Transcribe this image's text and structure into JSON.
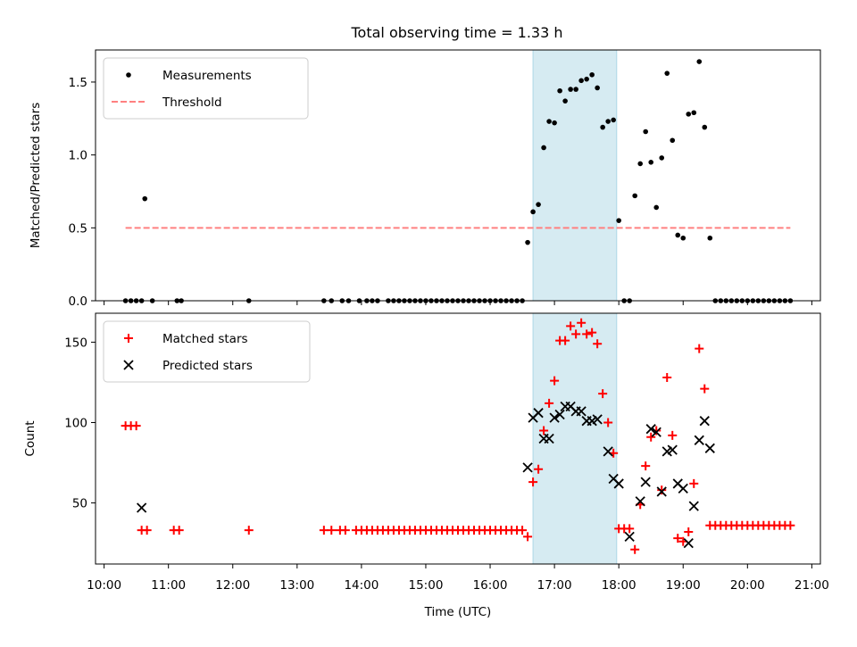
{
  "figure": {
    "title": "Total observing time = 1.33 h",
    "shaded_interval": {
      "start": "16:40",
      "end": "17:58"
    }
  },
  "chart_data": [
    {
      "type": "scatter",
      "ylabel": "Matched/Predicted stars",
      "xlim": [
        "09:52",
        "21:08"
      ],
      "ylim": [
        0,
        1.72
      ],
      "yticks": [
        0.0,
        0.5,
        1.0,
        1.5
      ],
      "ytick_labels": [
        "0.0",
        "0.5",
        "1.0",
        "1.5"
      ],
      "legend": {
        "placement": "upper left",
        "entries": [
          "Measurements",
          "Threshold"
        ]
      },
      "series": [
        {
          "name": "Measurements",
          "color": "#000000",
          "points": [
            [
              "10:20",
              0
            ],
            [
              "10:25",
              0
            ],
            [
              "10:30",
              0
            ],
            [
              "10:35",
              0
            ],
            [
              "10:38",
              0.7
            ],
            [
              "10:45",
              0
            ],
            [
              "11:08",
              0
            ],
            [
              "11:12",
              0
            ],
            [
              "12:15",
              0
            ],
            [
              "13:25",
              0
            ],
            [
              "13:32",
              0
            ],
            [
              "13:42",
              0
            ],
            [
              "13:48",
              0
            ],
            [
              "13:58",
              0
            ],
            [
              "14:05",
              0
            ],
            [
              "14:10",
              0
            ],
            [
              "14:15",
              0
            ],
            [
              "14:25",
              0
            ],
            [
              "14:30",
              0
            ],
            [
              "14:35",
              0
            ],
            [
              "14:40",
              0
            ],
            [
              "14:45",
              0
            ],
            [
              "14:50",
              0
            ],
            [
              "14:55",
              0
            ],
            [
              "15:00",
              0
            ],
            [
              "15:05",
              0
            ],
            [
              "15:10",
              0
            ],
            [
              "15:15",
              0
            ],
            [
              "15:20",
              0
            ],
            [
              "15:25",
              0
            ],
            [
              "15:30",
              0
            ],
            [
              "15:35",
              0
            ],
            [
              "15:40",
              0
            ],
            [
              "15:45",
              0
            ],
            [
              "15:50",
              0
            ],
            [
              "15:55",
              0
            ],
            [
              "16:00",
              0
            ],
            [
              "16:05",
              0
            ],
            [
              "16:10",
              0
            ],
            [
              "16:15",
              0
            ],
            [
              "16:20",
              0
            ],
            [
              "16:25",
              0
            ],
            [
              "16:30",
              0
            ],
            [
              "16:35",
              0.4
            ],
            [
              "16:40",
              0.61
            ],
            [
              "16:45",
              0.66
            ],
            [
              "16:50",
              1.05
            ],
            [
              "16:55",
              1.23
            ],
            [
              "17:00",
              1.22
            ],
            [
              "17:05",
              1.44
            ],
            [
              "17:10",
              1.37
            ],
            [
              "17:15",
              1.45
            ],
            [
              "17:20",
              1.45
            ],
            [
              "17:25",
              1.51
            ],
            [
              "17:30",
              1.52
            ],
            [
              "17:35",
              1.55
            ],
            [
              "17:40",
              1.46
            ],
            [
              "17:45",
              1.19
            ],
            [
              "17:50",
              1.23
            ],
            [
              "17:55",
              1.24
            ],
            [
              "18:00",
              0.55
            ],
            [
              "18:05",
              0
            ],
            [
              "18:10",
              0
            ],
            [
              "18:15",
              0.72
            ],
            [
              "18:20",
              0.94
            ],
            [
              "18:25",
              1.16
            ],
            [
              "18:30",
              0.95
            ],
            [
              "18:35",
              0.64
            ],
            [
              "18:40",
              0.98
            ],
            [
              "18:45",
              1.56
            ],
            [
              "18:50",
              1.1
            ],
            [
              "18:55",
              0.45
            ],
            [
              "19:00",
              0.43
            ],
            [
              "19:05",
              1.28
            ],
            [
              "19:10",
              1.29
            ],
            [
              "19:15",
              1.64
            ],
            [
              "19:20",
              1.19
            ],
            [
              "19:25",
              0.43
            ],
            [
              "19:30",
              0
            ],
            [
              "19:35",
              0
            ],
            [
              "19:40",
              0
            ],
            [
              "19:45",
              0
            ],
            [
              "19:50",
              0
            ],
            [
              "19:55",
              0
            ],
            [
              "20:00",
              0
            ],
            [
              "20:05",
              0
            ],
            [
              "20:10",
              0
            ],
            [
              "20:15",
              0
            ],
            [
              "20:20",
              0
            ],
            [
              "20:25",
              0
            ],
            [
              "20:30",
              0
            ],
            [
              "20:35",
              0
            ],
            [
              "20:40",
              0
            ]
          ]
        },
        {
          "name": "Threshold",
          "color": "#ff8080",
          "style": "dashed",
          "points": [
            [
              "10:20",
              0.5
            ],
            [
              "20:40",
              0.5
            ]
          ]
        }
      ]
    },
    {
      "type": "scatter",
      "xlabel": "Time (UTC)",
      "ylabel": "Count",
      "xlim": [
        "09:52",
        "21:08"
      ],
      "ylim": [
        12,
        168
      ],
      "yticks": [
        50,
        100,
        150
      ],
      "ytick_labels": [
        "50",
        "100",
        "150"
      ],
      "xticks": [
        "10:00",
        "11:00",
        "12:00",
        "13:00",
        "14:00",
        "15:00",
        "16:00",
        "17:00",
        "18:00",
        "19:00",
        "20:00",
        "21:00"
      ],
      "xtick_labels": [
        "10:00",
        "11:00",
        "12:00",
        "13:00",
        "14:00",
        "15:00",
        "16:00",
        "17:00",
        "18:00",
        "19:00",
        "20:00",
        "21:00"
      ],
      "legend": {
        "placement": "upper left",
        "entries": [
          "Matched stars",
          "Predicted stars"
        ]
      },
      "series": [
        {
          "name": "Matched stars",
          "color": "#ff0000",
          "marker": "+",
          "points": [
            [
              "10:20",
              98
            ],
            [
              "10:25",
              98
            ],
            [
              "10:30",
              98
            ],
            [
              "10:35",
              33
            ],
            [
              "10:40",
              33
            ],
            [
              "11:05",
              33
            ],
            [
              "11:10",
              33
            ],
            [
              "12:15",
              33
            ],
            [
              "13:25",
              33
            ],
            [
              "13:32",
              33
            ],
            [
              "13:40",
              33
            ],
            [
              "13:45",
              33
            ],
            [
              "13:55",
              33
            ],
            [
              "14:00",
              33
            ],
            [
              "14:05",
              33
            ],
            [
              "14:10",
              33
            ],
            [
              "14:15",
              33
            ],
            [
              "14:20",
              33
            ],
            [
              "14:25",
              33
            ],
            [
              "14:30",
              33
            ],
            [
              "14:35",
              33
            ],
            [
              "14:40",
              33
            ],
            [
              "14:45",
              33
            ],
            [
              "14:50",
              33
            ],
            [
              "14:55",
              33
            ],
            [
              "15:00",
              33
            ],
            [
              "15:05",
              33
            ],
            [
              "15:10",
              33
            ],
            [
              "15:15",
              33
            ],
            [
              "15:20",
              33
            ],
            [
              "15:25",
              33
            ],
            [
              "15:30",
              33
            ],
            [
              "15:35",
              33
            ],
            [
              "15:40",
              33
            ],
            [
              "15:45",
              33
            ],
            [
              "15:50",
              33
            ],
            [
              "15:55",
              33
            ],
            [
              "16:00",
              33
            ],
            [
              "16:05",
              33
            ],
            [
              "16:10",
              33
            ],
            [
              "16:15",
              33
            ],
            [
              "16:20",
              33
            ],
            [
              "16:25",
              33
            ],
            [
              "16:30",
              33
            ],
            [
              "16:35",
              29
            ],
            [
              "16:40",
              63
            ],
            [
              "16:45",
              71
            ],
            [
              "16:50",
              95
            ],
            [
              "16:55",
              112
            ],
            [
              "17:00",
              126
            ],
            [
              "17:05",
              151
            ],
            [
              "17:10",
              151
            ],
            [
              "17:15",
              160
            ],
            [
              "17:20",
              155
            ],
            [
              "17:25",
              162
            ],
            [
              "17:30",
              155
            ],
            [
              "17:35",
              156
            ],
            [
              "17:40",
              149
            ],
            [
              "17:45",
              118
            ],
            [
              "17:50",
              100
            ],
            [
              "17:55",
              81
            ],
            [
              "18:00",
              34
            ],
            [
              "18:05",
              34
            ],
            [
              "18:10",
              34
            ],
            [
              "18:15",
              21
            ],
            [
              "18:20",
              49
            ],
            [
              "18:25",
              73
            ],
            [
              "18:30",
              91
            ],
            [
              "18:35",
              95
            ],
            [
              "18:40",
              58
            ],
            [
              "18:45",
              128
            ],
            [
              "18:50",
              92
            ],
            [
              "18:55",
              28
            ],
            [
              "19:00",
              26
            ],
            [
              "19:05",
              32
            ],
            [
              "19:10",
              62
            ],
            [
              "19:15",
              146
            ],
            [
              "19:20",
              121
            ],
            [
              "19:25",
              36
            ],
            [
              "19:30",
              36
            ],
            [
              "19:35",
              36
            ],
            [
              "19:40",
              36
            ],
            [
              "19:45",
              36
            ],
            [
              "19:50",
              36
            ],
            [
              "19:55",
              36
            ],
            [
              "20:00",
              36
            ],
            [
              "20:05",
              36
            ],
            [
              "20:10",
              36
            ],
            [
              "20:15",
              36
            ],
            [
              "20:20",
              36
            ],
            [
              "20:25",
              36
            ],
            [
              "20:30",
              36
            ],
            [
              "20:35",
              36
            ],
            [
              "20:40",
              36
            ]
          ]
        },
        {
          "name": "Predicted stars",
          "color": "#000000",
          "marker": "x",
          "points": [
            [
              "10:35",
              47
            ],
            [
              "16:35",
              72
            ],
            [
              "16:40",
              103
            ],
            [
              "16:45",
              106
            ],
            [
              "16:50",
              90
            ],
            [
              "16:55",
              90
            ],
            [
              "17:00",
              103
            ],
            [
              "17:05",
              105
            ],
            [
              "17:10",
              110
            ],
            [
              "17:15",
              110
            ],
            [
              "17:20",
              107
            ],
            [
              "17:25",
              107
            ],
            [
              "17:30",
              101
            ],
            [
              "17:35",
              101
            ],
            [
              "17:40",
              102
            ],
            [
              "17:50",
              82
            ],
            [
              "17:55",
              65
            ],
            [
              "18:00",
              62
            ],
            [
              "18:10",
              29
            ],
            [
              "18:20",
              51
            ],
            [
              "18:25",
              63
            ],
            [
              "18:30",
              96
            ],
            [
              "18:35",
              94
            ],
            [
              "18:40",
              57
            ],
            [
              "18:45",
              82
            ],
            [
              "18:50",
              83
            ],
            [
              "18:55",
              62
            ],
            [
              "19:00",
              59
            ],
            [
              "19:05",
              25
            ],
            [
              "19:10",
              48
            ],
            [
              "19:15",
              89
            ],
            [
              "19:20",
              101
            ],
            [
              "19:25",
              84
            ]
          ]
        }
      ]
    }
  ]
}
